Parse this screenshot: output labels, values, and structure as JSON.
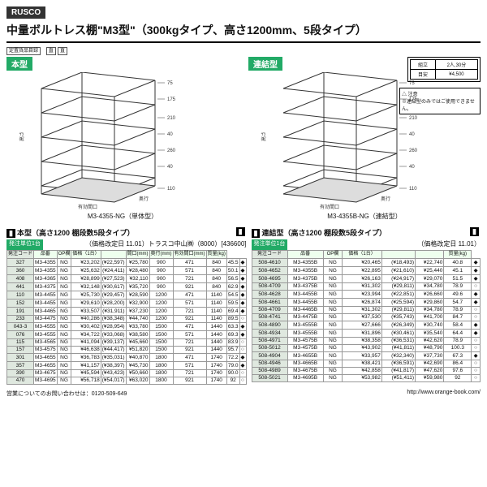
{
  "brand": "RUSCO",
  "title": "中量ボルトレス棚\"M3型\"（300kgタイプ、高さ1200mm、5段タイプ）",
  "shelfDims": [
    "75",
    "175",
    "210",
    "40",
    "260",
    "40",
    "110"
  ],
  "left": {
    "badge": "本型",
    "partnum": "M3-4355-NG（単体型）",
    "subhead": "本型（高さ1200 棚段数5段タイプ）",
    "note": "（価格改定日 11.01）トラスコ中山㈱（8000）[436600]",
    "cols": [
      "発注コード",
      "品番",
      "OP欄",
      "価格（1台）",
      "",
      "間口(mm)",
      "奥行(mm)",
      "有効間口(mm)",
      "質量(kg)"
    ],
    "info": [
      [
        "組立",
        "2人,30分"
      ],
      [
        "目安",
        "¥4,500"
      ]
    ],
    "rows": [
      [
        "327",
        "M3-4355",
        "NG",
        "¥23,202",
        "(¥22,597)",
        "¥25,780",
        "900",
        "471",
        "840",
        "45.5",
        "◆"
      ],
      [
        "360",
        "M3-4355",
        "NG",
        "¥25,632",
        "(¥24,411)",
        "¥28,480",
        "900",
        "571",
        "840",
        "50.1",
        "◆"
      ],
      [
        "408",
        "M3-4365",
        "NG",
        "¥28,899",
        "(¥27,523)",
        "¥32,110",
        "900",
        "721",
        "840",
        "56.5",
        "◆"
      ],
      [
        "441",
        "M3-4375",
        "NG",
        "¥32,148",
        "(¥30,617)",
        "¥35,720",
        "900",
        "921",
        "840",
        "62.9",
        "◆"
      ],
      [
        "110",
        "M3-4455",
        "NG",
        "¥25,730",
        "(¥29,457)",
        "¥28,590",
        "1200",
        "471",
        "1140",
        "54.5",
        "◆"
      ],
      [
        "152",
        "M3-4455",
        "NG",
        "¥29,610",
        "(¥28,200)",
        "¥32,900",
        "1200",
        "571",
        "1140",
        "59.5",
        "◆"
      ],
      [
        "191",
        "M3-4465",
        "NG",
        "¥33,507",
        "(¥31,911)",
        "¥37,230",
        "1200",
        "721",
        "1140",
        "69.4",
        "◆"
      ],
      [
        "233",
        "M3-4475",
        "NG",
        "¥40,286",
        "(¥38,348)",
        "¥44,740",
        "1200",
        "921",
        "1140",
        "89.5",
        "○"
      ],
      [
        "043-3",
        "M3-4555",
        "NG",
        "¥30,402",
        "(¥28,954)",
        "¥33,780",
        "1500",
        "471",
        "1440",
        "63.3",
        "◆"
      ],
      [
        "076",
        "M3-4555",
        "NG",
        "¥34,722",
        "(¥33,068)",
        "¥38,580",
        "1500",
        "571",
        "1440",
        "69.3",
        "◆"
      ],
      [
        "115",
        "M3-4565",
        "NG",
        "¥41,094",
        "(¥39,137)",
        "¥45,660",
        "1500",
        "721",
        "1440",
        "83.9",
        "○"
      ],
      [
        "157",
        "M3-4575",
        "NG",
        "¥46,638",
        "(¥44,417)",
        "¥51,820",
        "1500",
        "921",
        "1440",
        "95.7",
        "○"
      ],
      [
        "301",
        "M3-4655",
        "NG",
        "¥36,783",
        "(¥35,031)",
        "¥40,870",
        "1800",
        "471",
        "1740",
        "72.2",
        "◆"
      ],
      [
        "357",
        "M3-4655",
        "NG",
        "¥41,157",
        "(¥38,397)",
        "¥45,730",
        "1800",
        "571",
        "1740",
        "79.0",
        "◆"
      ],
      [
        "390",
        "M3-4675",
        "NG",
        "¥45,594",
        "(¥43,423)",
        "¥50,660",
        "1800",
        "721",
        "1740",
        "90.0",
        "○"
      ],
      [
        "470",
        "M3-4695",
        "NG",
        "¥56,718",
        "(¥54,017)",
        "¥63,020",
        "1800",
        "921",
        "1740",
        "92",
        "○"
      ]
    ]
  },
  "right": {
    "badge": "連結型",
    "partnum": "M3-4355B-NG（連結型）",
    "subhead": "連結型（高さ1200 棚段数5段タイプ）",
    "note": "（価格改定日 11.01）",
    "warn": "△ 注意\n※連結型のみではご使用できません。",
    "cols": [
      "発注コード",
      "品番",
      "OP欄",
      "価格（1台）",
      "",
      "",
      "質量(kg)"
    ],
    "tag": "発注単位1台",
    "rows": [
      [
        "508-4610",
        "M3-4355B",
        "NG",
        "¥20,465",
        "(¥18,493)",
        "¥22,740",
        "40.8",
        "◆"
      ],
      [
        "508-4652",
        "M3-4355B",
        "NG",
        "¥22,895",
        "(¥21,610)",
        "¥25,440",
        "45.1",
        "◆"
      ],
      [
        "508-4695",
        "M3-4375B",
        "NG",
        "¥26,163",
        "(¥24,917)",
        "¥29,070",
        "51.5",
        "◆"
      ],
      [
        "508-4709",
        "M3-4375B",
        "NG",
        "¥31,302",
        "(¥29,811)",
        "¥34,780",
        "78.9",
        "○"
      ],
      [
        "508-4628",
        "M3-4455B",
        "NG",
        "¥23,994",
        "(¥22,851)",
        "¥26,660",
        "49.6",
        "◆"
      ],
      [
        "508-4661",
        "M3-4455B",
        "NG",
        "¥26,874",
        "(¥25,594)",
        "¥29,860",
        "54.7",
        "◆"
      ],
      [
        "508-4709",
        "M3-4465B",
        "NG",
        "¥31,302",
        "(¥29,811)",
        "¥34,780",
        "78.9",
        "○"
      ],
      [
        "508-4741",
        "M3-4475B",
        "NG",
        "¥37,530",
        "(¥35,743)",
        "¥41,700",
        "84.7",
        "○"
      ],
      [
        "508-4890",
        "M3-4555B",
        "NG",
        "¥27,666",
        "(¥26,349)",
        "¥30,740",
        "58.4",
        "◆"
      ],
      [
        "508-4934",
        "M3-4555B",
        "NG",
        "¥31,896",
        "(¥30,461)",
        "¥35,540",
        "64.4",
        "◆"
      ],
      [
        "508-4971",
        "M3-4575B",
        "NG",
        "¥38,358",
        "(¥36,531)",
        "¥42,620",
        "78.9",
        "○"
      ],
      [
        "508-5012",
        "M3-4575B",
        "NG",
        "¥43,902",
        "(¥41,811)",
        "¥48,790",
        "100.3",
        "○"
      ],
      [
        "508-4904",
        "M3-4655B",
        "NG",
        "¥33,957",
        "(¥32,340)",
        "¥37,730",
        "67.3",
        "◆"
      ],
      [
        "508-4946",
        "M3-4665B",
        "NG",
        "¥38,421",
        "(¥36,591)",
        "¥42,690",
        "86.4",
        "○"
      ],
      [
        "508-4989",
        "M3-4675B",
        "NG",
        "¥42,858",
        "(¥41,817)",
        "¥47,620",
        "97.6",
        "○"
      ],
      [
        "508-5021",
        "M3-4695B",
        "NG",
        "¥53,982",
        "(¥51,411)",
        "¥59,980",
        "92",
        "○"
      ]
    ]
  },
  "footer": {
    "left": "営業についてのお問い合わせは：0120-509-649",
    "right": "http://www.orange-book.com/"
  }
}
